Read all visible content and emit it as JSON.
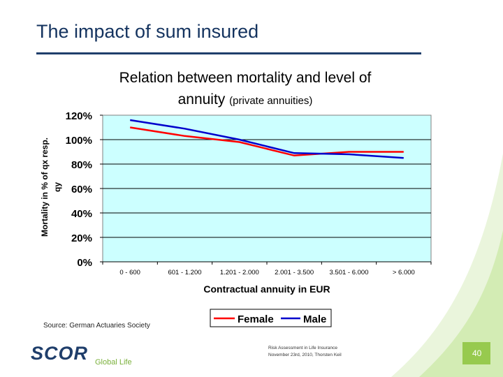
{
  "slide": {
    "title": "The impact of sum insured",
    "source": "Source: German Actuaries Society",
    "footer_line1": "Risk Assessment in Life Insurance",
    "footer_line2": "November 23rd, 2010, Thorsten Keil",
    "page_number": "40",
    "logo_text": "SCOR",
    "logo_subtext": "Global Life"
  },
  "colors": {
    "title": "#14335f",
    "rule": "#1f3e6b",
    "plot_background": "#ccffff",
    "female": "#ff0000",
    "male": "#0000cc",
    "accent_green": "#8cc43c",
    "logo_blue": "#1f3e6b"
  },
  "chart_data": {
    "type": "line",
    "title": "Relation between mortality and level of annuity",
    "title_suffix": "(private annuities)",
    "xlabel": "Contractual annuity in EUR",
    "ylabel": "Mortality in % of qx resp. qy",
    "categories": [
      "0 - 600",
      "601 - 1.200",
      "1.201 - 2.000",
      "2.001 - 3.500",
      "3.501 - 6.000",
      "> 6.000"
    ],
    "y_ticks": [
      "0%",
      "20%",
      "40%",
      "60%",
      "80%",
      "100%",
      "120%"
    ],
    "ylim": [
      0,
      120
    ],
    "grid": true,
    "legend_position": "bottom-right",
    "series": [
      {
        "name": "Female",
        "values": [
          110,
          103,
          98,
          87,
          90,
          90
        ]
      },
      {
        "name": "Male",
        "values": [
          116,
          109,
          100,
          89,
          88,
          85
        ]
      }
    ]
  }
}
